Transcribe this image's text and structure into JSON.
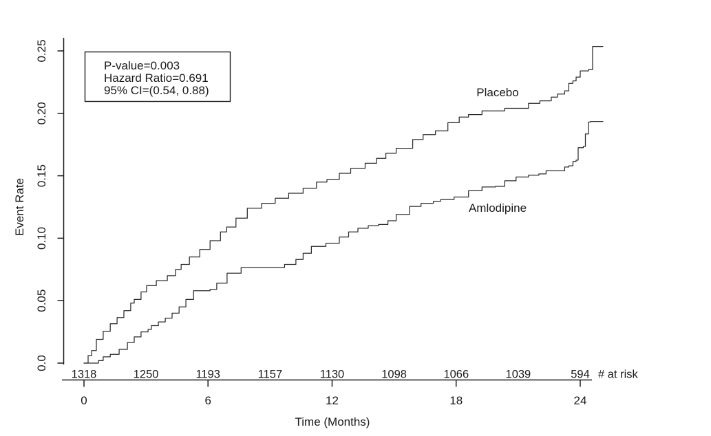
{
  "figure": {
    "background": "#ffffff",
    "ink_color": "#1a1a1a"
  },
  "annotation": {
    "lines": [
      "P-value=0.003",
      "Hazard Ratio=0.691",
      "95% CI=(0.54, 0.88)"
    ]
  },
  "axis_labels": {
    "x": "Time (Months)",
    "y": "Event Rate"
  },
  "risk_table": {
    "label": "# at risk",
    "months": [
      0,
      3,
      6,
      9,
      12,
      15,
      18,
      21,
      24
    ],
    "values": [
      "1318",
      "1250",
      "1193",
      "1157",
      "1130",
      "1098",
      "1066",
      "1039",
      "594"
    ]
  },
  "chart_data": {
    "type": "line",
    "subtype": "kaplan-meier-step",
    "title": "",
    "xlabel": "Time (Months)",
    "ylabel": "Event Rate",
    "xlim": [
      0,
      25.5
    ],
    "ylim": [
      0,
      0.26
    ],
    "grid": false,
    "legend_position": "inline-curve-labels",
    "xticks": [
      "0",
      "6",
      "12",
      "18",
      "24"
    ],
    "yticks": [
      "0.0",
      "0.05",
      "0.10",
      "0.15",
      "0.20",
      "0.25"
    ],
    "series": [
      {
        "name": "Placebo",
        "points": [
          [
            0,
            0
          ],
          [
            0.2,
            0.006
          ],
          [
            0.37,
            0.01
          ],
          [
            0.6,
            0.019
          ],
          [
            0.93,
            0.0255
          ],
          [
            1.27,
            0.0315
          ],
          [
            1.6,
            0.0365
          ],
          [
            1.93,
            0.042
          ],
          [
            2.26,
            0.048
          ],
          [
            2.43,
            0.051
          ],
          [
            2.76,
            0.057
          ],
          [
            3.03,
            0.062
          ],
          [
            3.5,
            0.066
          ],
          [
            4.03,
            0.07
          ],
          [
            4.43,
            0.075
          ],
          [
            4.7,
            0.079
          ],
          [
            5.1,
            0.085
          ],
          [
            5.6,
            0.091
          ],
          [
            6.1,
            0.098
          ],
          [
            6.6,
            0.105
          ],
          [
            6.9,
            0.109
          ],
          [
            7.35,
            0.116
          ],
          [
            7.9,
            0.124
          ],
          [
            8.6,
            0.128
          ],
          [
            9.25,
            0.132
          ],
          [
            9.9,
            0.136
          ],
          [
            10.6,
            0.14
          ],
          [
            11.25,
            0.145
          ],
          [
            11.75,
            0.147
          ],
          [
            12.35,
            0.152
          ],
          [
            12.9,
            0.156
          ],
          [
            13.6,
            0.16
          ],
          [
            14.15,
            0.164
          ],
          [
            14.6,
            0.168
          ],
          [
            15.1,
            0.172
          ],
          [
            15.9,
            0.179
          ],
          [
            16.4,
            0.183
          ],
          [
            17.0,
            0.186
          ],
          [
            17.6,
            0.1925
          ],
          [
            18.15,
            0.197
          ],
          [
            18.6,
            0.199
          ],
          [
            19.25,
            0.202
          ],
          [
            20.35,
            0.204
          ],
          [
            21.5,
            0.208
          ],
          [
            22.05,
            0.21
          ],
          [
            22.6,
            0.213
          ],
          [
            22.9,
            0.2155
          ],
          [
            23.25,
            0.218
          ],
          [
            23.45,
            0.224
          ],
          [
            23.65,
            0.226
          ],
          [
            23.8,
            0.229
          ],
          [
            24.0,
            0.234
          ],
          [
            24.4,
            0.235
          ],
          [
            24.6,
            0.2535
          ],
          [
            25.1,
            0.2535
          ]
        ]
      },
      {
        "name": "Amlodipine",
        "points": [
          [
            0,
            0
          ],
          [
            0.7,
            0.002
          ],
          [
            0.93,
            0.005
          ],
          [
            1.27,
            0.007
          ],
          [
            1.7,
            0.011
          ],
          [
            2.1,
            0.0165
          ],
          [
            2.43,
            0.021
          ],
          [
            2.76,
            0.025
          ],
          [
            3.1,
            0.027
          ],
          [
            3.26,
            0.03
          ],
          [
            3.6,
            0.033
          ],
          [
            3.93,
            0.036
          ],
          [
            4.26,
            0.04
          ],
          [
            4.6,
            0.045
          ],
          [
            4.93,
            0.051
          ],
          [
            5.3,
            0.058
          ],
          [
            6.1,
            0.059
          ],
          [
            6.42,
            0.064
          ],
          [
            6.92,
            0.072
          ],
          [
            7.6,
            0.0765
          ],
          [
            9.15,
            0.0765
          ],
          [
            9.7,
            0.079
          ],
          [
            10.25,
            0.083
          ],
          [
            10.6,
            0.088
          ],
          [
            11.0,
            0.0935
          ],
          [
            11.7,
            0.096
          ],
          [
            12.35,
            0.101
          ],
          [
            12.8,
            0.105
          ],
          [
            13.25,
            0.108
          ],
          [
            13.75,
            0.11
          ],
          [
            14.25,
            0.111
          ],
          [
            14.7,
            0.114
          ],
          [
            15.1,
            0.119
          ],
          [
            15.75,
            0.1255
          ],
          [
            16.3,
            0.128
          ],
          [
            16.9,
            0.1295
          ],
          [
            17.25,
            0.131
          ],
          [
            17.9,
            0.133
          ],
          [
            18.6,
            0.138
          ],
          [
            19.25,
            0.141
          ],
          [
            19.9,
            0.1415
          ],
          [
            20.35,
            0.146
          ],
          [
            20.9,
            0.149
          ],
          [
            21.5,
            0.1505
          ],
          [
            22.0,
            0.1515
          ],
          [
            22.35,
            0.154
          ],
          [
            23.15,
            0.154
          ],
          [
            23.25,
            0.157
          ],
          [
            23.45,
            0.158
          ],
          [
            23.65,
            0.1615
          ],
          [
            23.8,
            0.1625
          ],
          [
            23.9,
            0.1725
          ],
          [
            24.15,
            0.1735
          ],
          [
            24.25,
            0.1835
          ],
          [
            24.4,
            0.193
          ],
          [
            24.5,
            0.1935
          ],
          [
            25.1,
            0.1935
          ]
        ]
      }
    ]
  }
}
